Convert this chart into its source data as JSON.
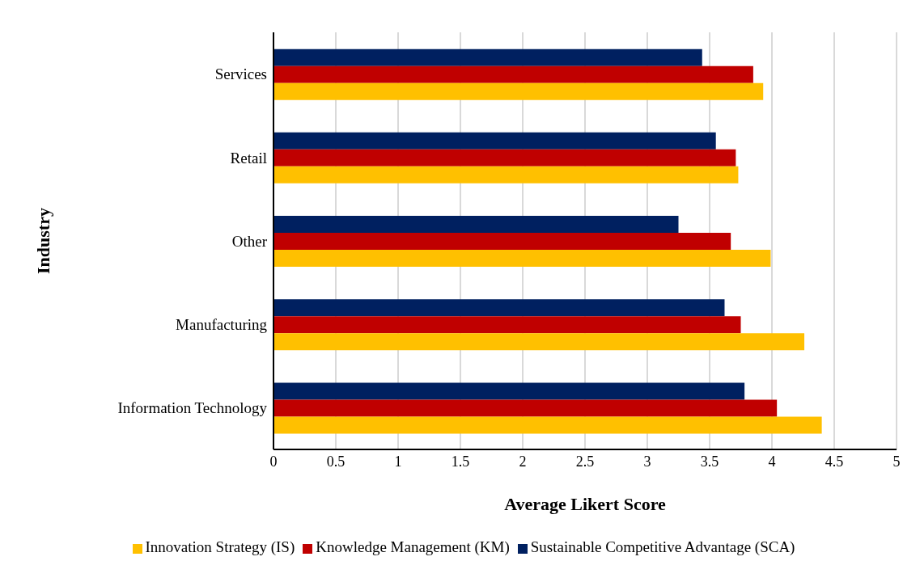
{
  "chart_data": {
    "type": "bar",
    "orientation": "horizontal",
    "xlabel": "Average Likert Score",
    "ylabel": "Industry",
    "categories": [
      "Services",
      "Retail",
      "Other",
      "Manufacturing",
      "Information Technology"
    ],
    "series": [
      {
        "name": "Sustainable Competitive Advantage (SCA)",
        "color": "#002060",
        "values": [
          3.44,
          3.55,
          3.25,
          3.62,
          3.78
        ]
      },
      {
        "name": "Knowledge Management (KM)",
        "color": "#c00000",
        "values": [
          3.85,
          3.71,
          3.67,
          3.75,
          4.04
        ]
      },
      {
        "name": "Innovation Strategy (IS)",
        "color": "#ffc000",
        "values": [
          3.93,
          3.73,
          3.99,
          4.26,
          4.4
        ]
      }
    ],
    "xlim": [
      0,
      5
    ],
    "xticks": [
      0,
      0.5,
      1,
      1.5,
      2,
      2.5,
      3,
      3.5,
      4,
      4.5,
      5
    ],
    "grid": "x",
    "legend": "bottom"
  }
}
